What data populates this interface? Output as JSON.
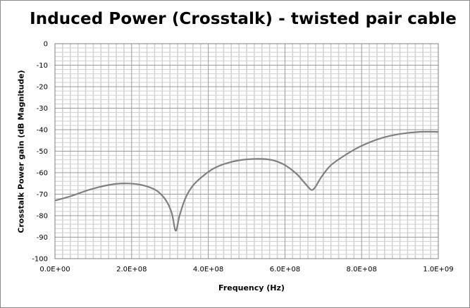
{
  "chart_data": {
    "type": "line",
    "title": "Induced Power (Crosstalk) - twisted pair cable",
    "xlabel": "Frequency (Hz)",
    "ylabel": "Crosstalk Power gain (dB Magnitude)",
    "xlim": [
      0,
      1000000000
    ],
    "ylim": [
      -100,
      0
    ],
    "x_ticks": [
      0,
      200000000,
      400000000,
      600000000,
      800000000,
      1000000000
    ],
    "x_tick_labels": [
      "0.0E+00",
      "2.0E+08",
      "4.0E+08",
      "6.0E+08",
      "8.0E+08",
      "1.0E+09"
    ],
    "y_ticks": [
      0,
      -10,
      -20,
      -30,
      -40,
      -50,
      -60,
      -70,
      -80,
      -90,
      -100
    ],
    "y_tick_labels": [
      "0",
      "-10",
      "-20",
      "-30",
      "-40",
      "-50",
      "-60",
      "-70",
      "-80",
      "-90",
      "-100"
    ],
    "grid": true,
    "legend": "none",
    "line_color": "#808080",
    "series": [
      {
        "x": [
          0,
          40000000,
          80000000,
          120000000,
          160000000,
          190000000,
          220000000,
          250000000,
          270000000,
          290000000,
          305000000,
          315000000,
          325000000,
          340000000,
          360000000,
          390000000,
          420000000,
          460000000,
          500000000,
          540000000,
          570000000,
          600000000,
          630000000,
          650000000,
          665000000,
          672000000,
          680000000,
          695000000,
          720000000,
          760000000,
          800000000,
          850000000,
          900000000,
          950000000,
          1000000000
        ],
        "y": [
          -73,
          -71,
          -68.5,
          -66.5,
          -65.2,
          -65,
          -65.5,
          -67,
          -69,
          -73,
          -79,
          -87,
          -80,
          -72,
          -66,
          -61,
          -57.5,
          -55,
          -53.8,
          -53.6,
          -54.3,
          -56.5,
          -60.5,
          -64.5,
          -67.5,
          -68,
          -66.5,
          -62,
          -56.5,
          -51.5,
          -47.5,
          -44,
          -42,
          -41,
          -41
        ]
      }
    ]
  }
}
